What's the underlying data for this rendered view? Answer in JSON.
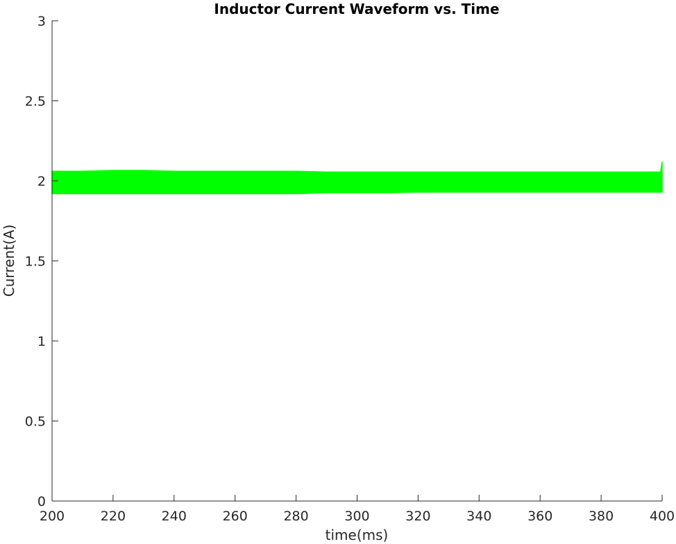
{
  "chart_data": {
    "type": "line",
    "title": "Inductor Current Waveform vs. Time",
    "xlabel": "time(ms)",
    "ylabel": "Current(A)",
    "xlim": [
      200,
      400
    ],
    "ylim": [
      0,
      3
    ],
    "xticks": [
      200,
      220,
      240,
      260,
      280,
      300,
      320,
      340,
      360,
      380,
      400
    ],
    "yticks": [
      0,
      0.5,
      1,
      1.5,
      2,
      2.5,
      3
    ],
    "ytick_labels": [
      "0",
      "0.5",
      "1",
      "1.5",
      "2",
      "2.5",
      "3"
    ],
    "grid": false,
    "legend": "none",
    "series": [
      {
        "color": "#00ff00",
        "x": [
          200,
          210,
          220,
          230,
          240,
          250,
          260,
          270,
          280,
          290,
          300,
          310,
          320,
          330,
          340,
          350,
          360,
          370,
          380,
          390,
          399.5,
          400
        ],
        "y_max": [
          2.06,
          2.06,
          2.065,
          2.065,
          2.06,
          2.06,
          2.06,
          2.06,
          2.06,
          2.055,
          2.055,
          2.055,
          2.055,
          2.055,
          2.055,
          2.055,
          2.055,
          2.055,
          2.055,
          2.055,
          2.055,
          2.12
        ],
        "y_min": [
          1.92,
          1.92,
          1.92,
          1.92,
          1.92,
          1.92,
          1.92,
          1.92,
          1.92,
          1.925,
          1.925,
          1.925,
          1.93,
          1.93,
          1.93,
          1.93,
          1.93,
          1.93,
          1.93,
          1.93,
          1.93,
          1.93
        ]
      }
    ]
  }
}
